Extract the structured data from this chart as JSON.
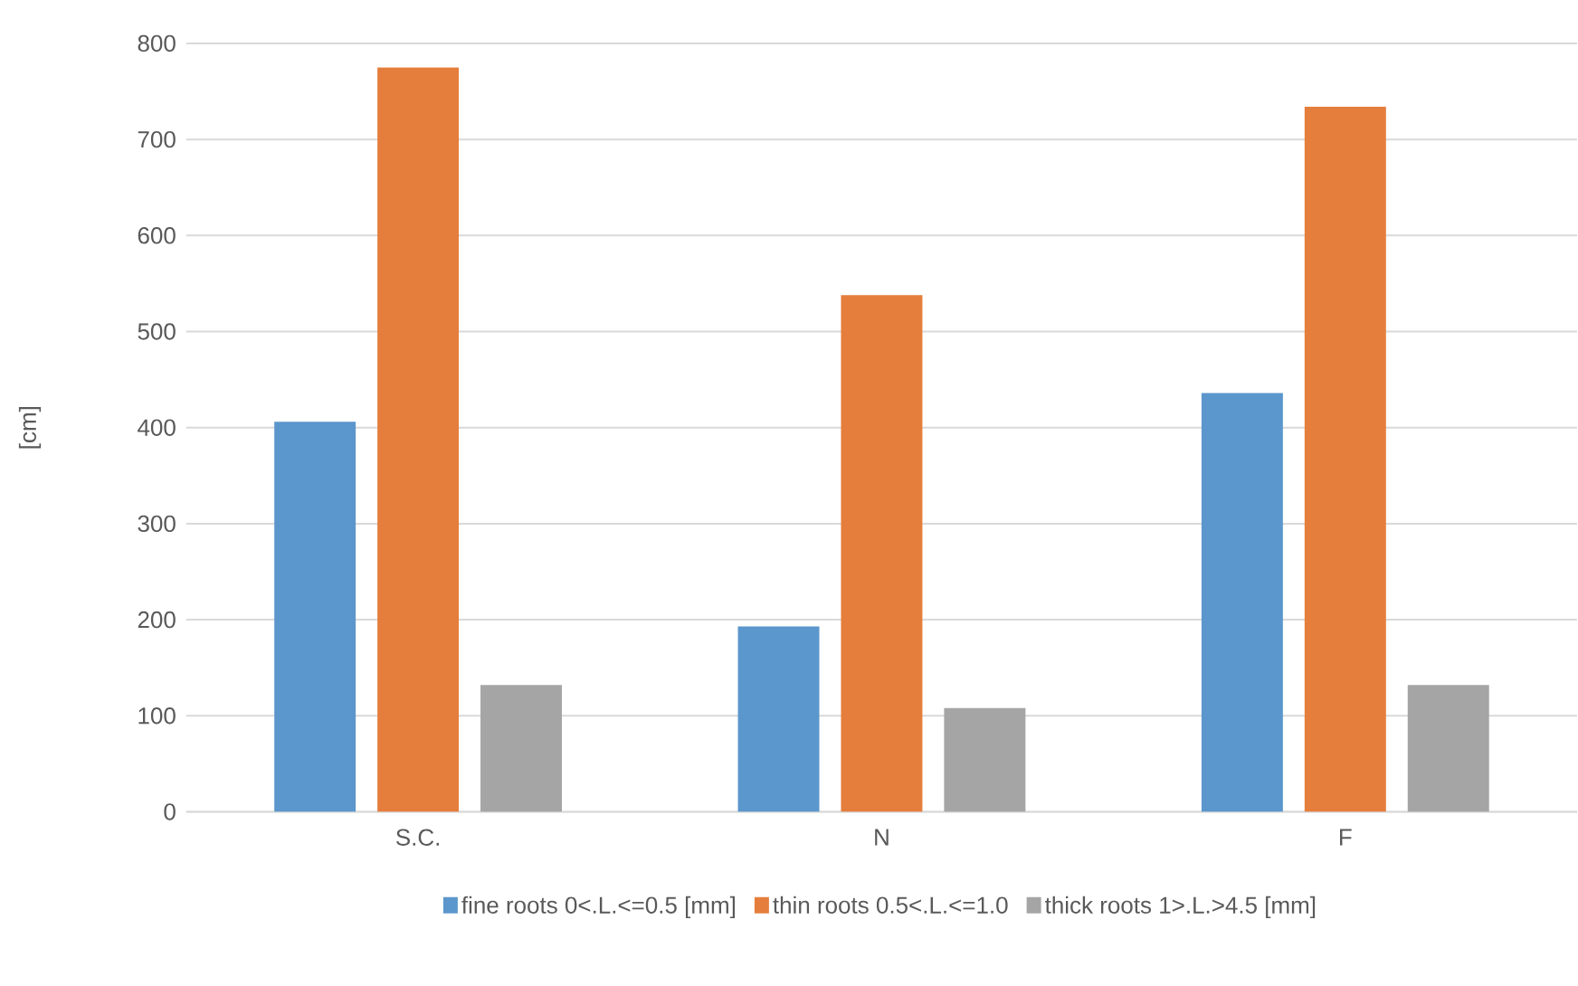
{
  "chart_data": {
    "type": "bar",
    "ylabel": "[cm]",
    "categories": [
      "S.C.",
      "N",
      "F"
    ],
    "series": [
      {
        "name": "fine roots 0<.L.<=0.5 [mm]",
        "color": "#5b96cc",
        "values": [
          406,
          193,
          436
        ]
      },
      {
        "name": "thin roots 0.5<.L.<=1.0",
        "color": "#e57e3c",
        "values": [
          775,
          538,
          734
        ]
      },
      {
        "name": "thick roots 1>.L.>4.5 [mm]",
        "color": "#a5a5a5",
        "values": [
          132,
          108,
          132
        ]
      }
    ],
    "ylim": [
      0,
      800
    ],
    "yticks": [
      0,
      100,
      200,
      300,
      400,
      500,
      600,
      700,
      800
    ],
    "grid": "y",
    "legend": "bottom"
  }
}
